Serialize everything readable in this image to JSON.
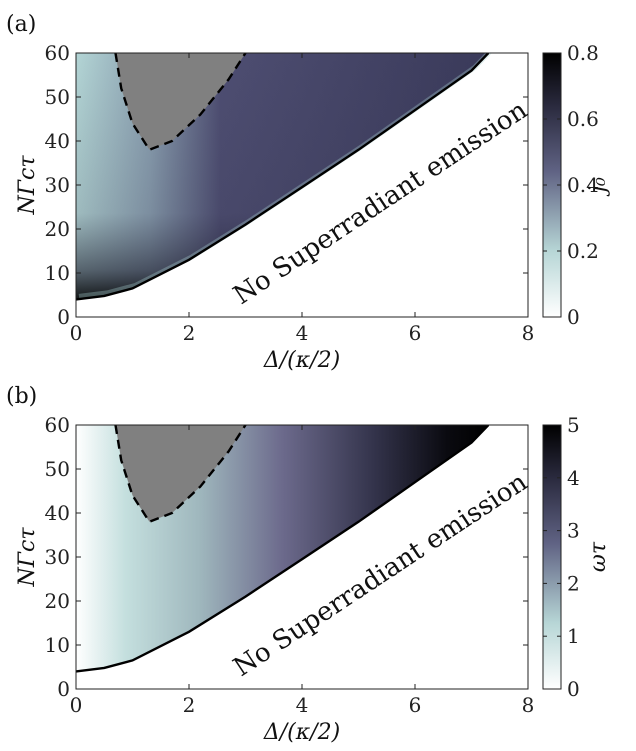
{
  "chart_data": [
    {
      "type": "heatmap",
      "panel_label": "(a)",
      "xlabel": "Δ/(κ/2)",
      "ylabel": "NΓcτ",
      "xlim": [
        0,
        8
      ],
      "ylim": [
        0,
        60
      ],
      "xticks": [
        "0",
        "2",
        "4",
        "6",
        "8"
      ],
      "yticks": [
        "0",
        "10",
        "20",
        "30",
        "40",
        "50",
        "60"
      ],
      "colorbar": {
        "label": "j̇₀",
        "range": [
          0,
          0.8
        ],
        "ticks": [
          "0",
          "0.2",
          "0.4",
          "0.6",
          "0.8"
        ]
      },
      "annotation": "No Superradiant emission",
      "threshold_boundary": [
        [
          0,
          4
        ],
        [
          0.5,
          4.8
        ],
        [
          1,
          6.5
        ],
        [
          2,
          13
        ],
        [
          3,
          21
        ],
        [
          4,
          29.5
        ],
        [
          5,
          38
        ],
        [
          6,
          47
        ],
        [
          7,
          56
        ],
        [
          7.3,
          60
        ]
      ],
      "gray_region_boundary": [
        [
          0.7,
          60
        ],
        [
          0.8,
          52
        ],
        [
          1.0,
          44
        ],
        [
          1.3,
          38
        ],
        [
          1.7,
          40
        ],
        [
          2.2,
          46
        ],
        [
          2.7,
          54
        ],
        [
          3.0,
          60
        ]
      ],
      "grid": false
    },
    {
      "type": "heatmap",
      "panel_label": "(b)",
      "xlabel": "Δ/(κ/2)",
      "ylabel": "NΓcτ",
      "xlim": [
        0,
        8
      ],
      "ylim": [
        0,
        60
      ],
      "xticks": [
        "0",
        "2",
        "4",
        "6",
        "8"
      ],
      "yticks": [
        "0",
        "10",
        "20",
        "30",
        "40",
        "50",
        "60"
      ],
      "colorbar": {
        "label": "ωτ",
        "range": [
          0,
          5
        ],
        "ticks": [
          "0",
          "1",
          "2",
          "3",
          "4",
          "5"
        ]
      },
      "annotation": "No Superradiant emission",
      "threshold_boundary": [
        [
          0,
          4
        ],
        [
          0.5,
          4.8
        ],
        [
          1,
          6.5
        ],
        [
          2,
          13
        ],
        [
          3,
          21
        ],
        [
          4,
          29.5
        ],
        [
          5,
          38
        ],
        [
          6,
          47
        ],
        [
          7,
          56
        ],
        [
          7.3,
          60
        ]
      ],
      "gray_region_boundary": [
        [
          0.7,
          60
        ],
        [
          0.8,
          52
        ],
        [
          1.0,
          44
        ],
        [
          1.3,
          38
        ],
        [
          1.7,
          40
        ],
        [
          2.2,
          46
        ],
        [
          2.7,
          54
        ],
        [
          3.0,
          60
        ]
      ],
      "grid": false
    }
  ],
  "colors": {
    "low": "#ffffff",
    "cyan_mid": "#b7d6d6",
    "purple_mid": "#5a5a80",
    "high": "#000000",
    "gray_region": "#808080"
  }
}
